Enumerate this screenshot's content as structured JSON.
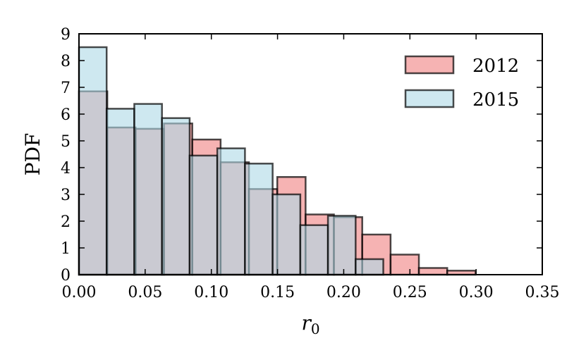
{
  "chart_data": {
    "type": "histogram",
    "xlabel": "r",
    "xlabel_subscript": "0",
    "ylabel": "PDF",
    "xlim": [
      0,
      0.35
    ],
    "ylim": [
      0,
      9
    ],
    "xticks": [
      "0.00",
      "0.05",
      "0.10",
      "0.15",
      "0.20",
      "0.25",
      "0.30",
      "0.35"
    ],
    "yticks": [
      "0",
      "1",
      "2",
      "3",
      "4",
      "5",
      "6",
      "7",
      "8",
      "9"
    ],
    "grid": false,
    "legend_position": "top-right",
    "series": [
      {
        "name": "2012",
        "color": "#f08080",
        "bin_edges": [
          0.0,
          0.0214,
          0.0428,
          0.0642,
          0.0856,
          0.107,
          0.1284,
          0.1498,
          0.1712,
          0.1926,
          0.214,
          0.2354,
          0.2568,
          0.2782,
          0.2996
        ],
        "values": [
          6.85,
          5.5,
          5.45,
          5.65,
          5.05,
          4.2,
          3.2,
          3.65,
          2.25,
          2.15,
          1.5,
          0.75,
          0.25,
          0.15
        ]
      },
      {
        "name": "2015",
        "color": "#add8e6",
        "bin_edges": [
          0.0,
          0.0209,
          0.0418,
          0.0627,
          0.0836,
          0.1045,
          0.1254,
          0.1463,
          0.1672,
          0.1881,
          0.209,
          0.2299
        ],
        "values": [
          8.5,
          6.2,
          6.38,
          5.85,
          4.45,
          4.72,
          4.15,
          3.0,
          1.85,
          2.2,
          0.58
        ]
      }
    ]
  }
}
